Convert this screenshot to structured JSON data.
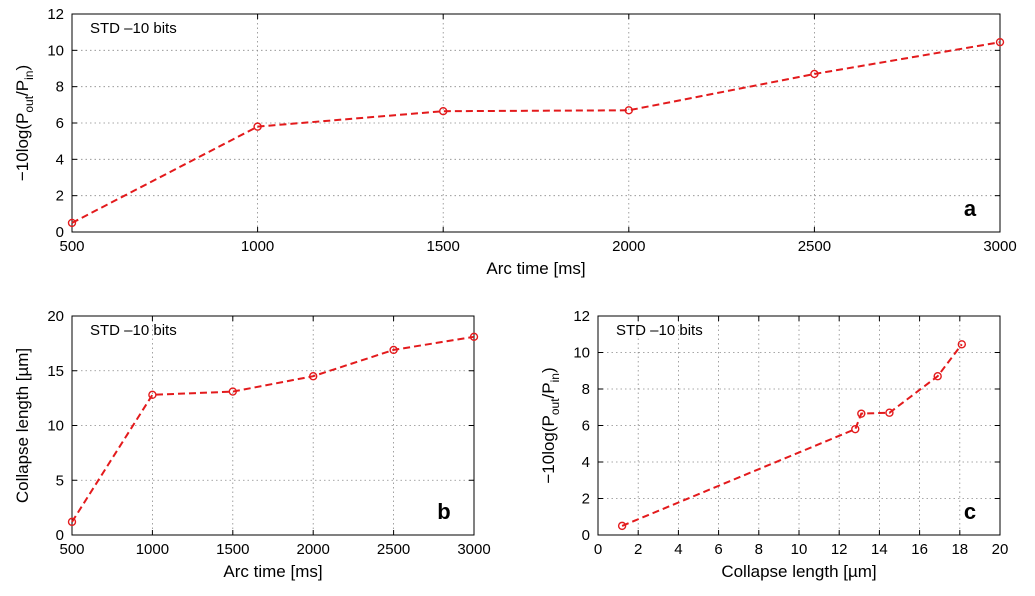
{
  "chart_data": [
    {
      "panel_label": "a",
      "type": "line",
      "annotation": "STD –10 bits",
      "xlabel": "Arc time [ms]",
      "ylabel": "−10log(P",
      "ylabel_sub1": "out",
      "ylabel_mid": "/P",
      "ylabel_sub2": "in",
      "ylabel_end": ")",
      "xlim": [
        500,
        3000
      ],
      "ylim": [
        0,
        12
      ],
      "xticks": [
        500,
        1000,
        1500,
        2000,
        2500,
        3000
      ],
      "yticks": [
        0,
        2,
        4,
        6,
        8,
        10,
        12
      ],
      "grid": true,
      "color": "#e31a1c",
      "x": [
        500,
        1000,
        1500,
        2000,
        2500,
        3000
      ],
      "y": [
        0.5,
        5.8,
        6.65,
        6.7,
        8.7,
        10.45
      ]
    },
    {
      "panel_label": "b",
      "type": "line",
      "annotation": "STD –10 bits",
      "xlabel": "Arc time [ms]",
      "ylabel": "Collapse length [µm]",
      "xlim": [
        500,
        3000
      ],
      "ylim": [
        0,
        20
      ],
      "xticks": [
        500,
        1000,
        1500,
        2000,
        2500,
        3000
      ],
      "yticks": [
        0,
        5,
        10,
        15,
        20
      ],
      "grid": true,
      "color": "#e31a1c",
      "x": [
        500,
        1000,
        1500,
        2000,
        2500,
        3000
      ],
      "y": [
        1.2,
        12.8,
        13.1,
        14.5,
        16.9,
        18.1
      ]
    },
    {
      "panel_label": "c",
      "type": "line",
      "annotation": "STD –10 bits",
      "xlabel": "Collapse length [µm]",
      "ylabel": "−10log(P",
      "ylabel_sub1": "out",
      "ylabel_mid": "/P",
      "ylabel_sub2": "in",
      "ylabel_end": ")",
      "xlim": [
        0,
        20
      ],
      "ylim": [
        0,
        12
      ],
      "xticks": [
        0,
        2,
        4,
        6,
        8,
        10,
        12,
        14,
        16,
        18,
        20
      ],
      "yticks": [
        0,
        2,
        4,
        6,
        8,
        10,
        12
      ],
      "grid": true,
      "color": "#e31a1c",
      "x": [
        1.2,
        12.8,
        13.1,
        14.5,
        16.9,
        18.1
      ],
      "y": [
        0.5,
        5.8,
        6.65,
        6.7,
        8.7,
        10.45
      ]
    }
  ]
}
